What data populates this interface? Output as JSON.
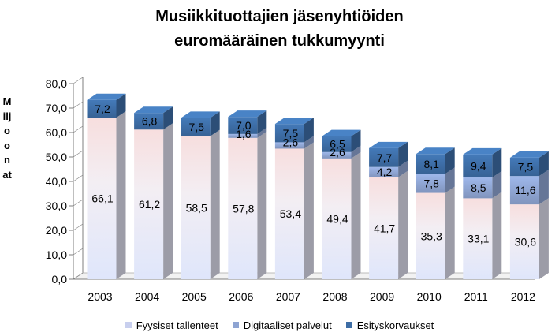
{
  "chart_data": {
    "type": "bar",
    "stacked": true,
    "title_lines": [
      "Musiikkituottajien jäsenyhtiöiden",
      "euromääräinen tukkumyynti"
    ],
    "ylabel": "Miljoonat",
    "xlabel": "",
    "ylim": [
      0,
      80
    ],
    "yticks": [
      "0,0",
      "10,0",
      "20,0",
      "30,0",
      "40,0",
      "50,0",
      "60,0",
      "70,0",
      "80,0"
    ],
    "categories": [
      "2003",
      "2004",
      "2005",
      "2006",
      "2007",
      "2008",
      "2009",
      "2010",
      "2011",
      "2012"
    ],
    "series": [
      {
        "name": "Fyysiset tallenteet",
        "color": "#c8cfee",
        "values": [
          66.1,
          61.2,
          58.5,
          57.8,
          53.4,
          49.4,
          41.7,
          35.3,
          33.1,
          30.6
        ],
        "labels": [
          "66,1",
          "61,2",
          "58,5",
          "57,8",
          "53,4",
          "49,4",
          "41,7",
          "35,3",
          "33,1",
          "30,6"
        ]
      },
      {
        "name": "Digitaaliset palvelut",
        "color": "#8ea4d2",
        "values": [
          0,
          0,
          0,
          1.6,
          2.6,
          2.6,
          4.2,
          7.8,
          8.5,
          11.6
        ],
        "labels": [
          "",
          "",
          "",
          "1,6",
          "2,6",
          "2,6",
          "4,2",
          "7,8",
          "8,5",
          "11,6"
        ]
      },
      {
        "name": "Esityskorvaukset",
        "color": "#3d6da5",
        "values": [
          7.2,
          6.8,
          7.5,
          7.0,
          7.5,
          6.5,
          7.7,
          8.1,
          9.4,
          7.5
        ],
        "labels": [
          "7,2",
          "6,8",
          "7,5",
          "7,0",
          "7,5",
          "6,5",
          "7,7",
          "8,1",
          "9,4",
          "7,5"
        ]
      }
    ],
    "grid": false,
    "legend_position": "bottom"
  }
}
